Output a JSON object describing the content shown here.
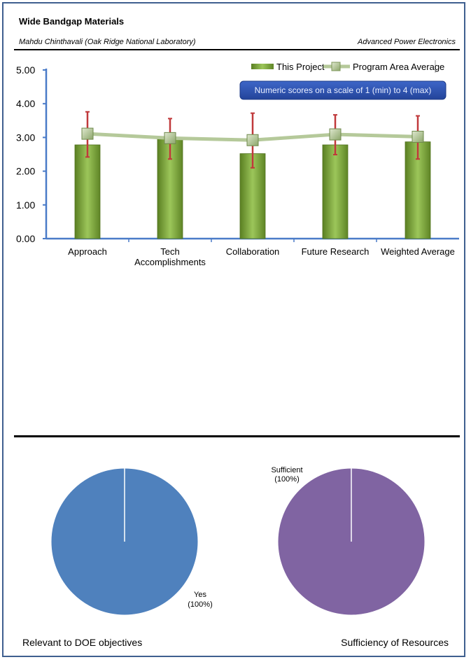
{
  "header": {
    "title": "Wide Bandgap Materials",
    "author": "Mahdu Chinthavali (Oak Ridge National Laboratory)",
    "program": "Advanced Power Electronics"
  },
  "chart_data": [
    {
      "type": "bar",
      "title": "",
      "xlabel": "",
      "ylabel": "",
      "categories": [
        "Approach",
        "Tech Accomplishments",
        "Collaboration",
        "Future Research",
        "Weighted Average"
      ],
      "category_lines": [
        [
          "Approach"
        ],
        [
          "Tech",
          "Accomplishments"
        ],
        [
          "Collaboration"
        ],
        [
          "Future Research"
        ],
        [
          "Weighted Average"
        ]
      ],
      "series": [
        {
          "name": "This Project",
          "kind": "bar",
          "color": "#7da83a",
          "values": [
            2.78,
            3.01,
            2.52,
            2.78,
            2.87
          ],
          "error_low": [
            2.42,
            2.36,
            2.1,
            2.49,
            2.36
          ],
          "error_high": [
            3.76,
            3.56,
            3.72,
            3.67,
            3.64
          ]
        },
        {
          "name": "Program Area Average",
          "kind": "line",
          "color": "#b5c99a",
          "values": [
            3.11,
            2.98,
            2.92,
            3.09,
            3.02
          ]
        }
      ],
      "ylim": [
        0,
        5
      ],
      "yticks": [
        "0.00",
        "1.00",
        "2.00",
        "3.00",
        "4.00",
        "5.00"
      ],
      "legend_position": "top-right",
      "note": "Numeric scores on a scale of 1 (min) to 4 (max)",
      "grid": false
    },
    {
      "type": "pie",
      "title": "Relevant to DOE objectives",
      "slices": [
        {
          "label": "Yes",
          "percent_label": "(100%)",
          "value": 100,
          "color": "#4f81bd"
        }
      ]
    },
    {
      "type": "pie",
      "title": "Sufficiency of Resources",
      "slices": [
        {
          "label": "Sufficient",
          "percent_label": "(100%)",
          "value": 100,
          "color": "#8064a2"
        }
      ]
    }
  ]
}
